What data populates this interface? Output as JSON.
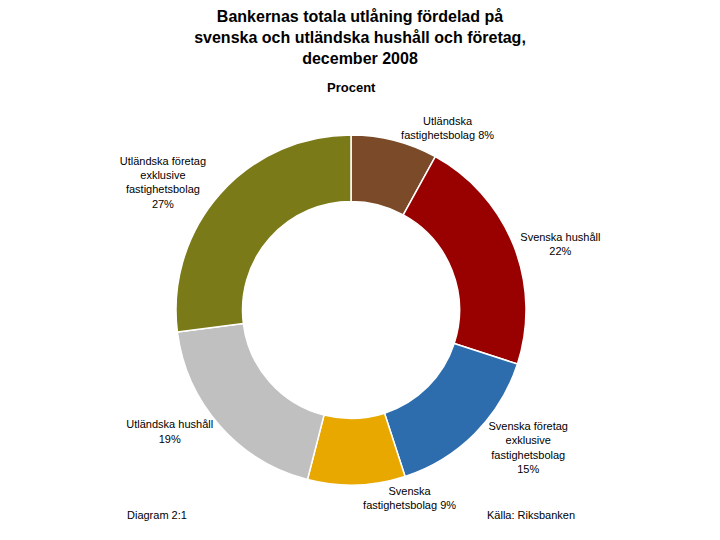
{
  "chart_data": {
    "type": "donut",
    "title": "Bankernas totala utlåning fördelad på\nsvenska och utländska hushåll och företag,\ndecember 2008",
    "subtitle": "Procent",
    "categories": [
      "Utländska\nfastighetsbolag 8%",
      "Svenska hushåll\n22%",
      "Svenska företag\nexklusive\nfastighetsbolag\n15%",
      "Svenska\nfastighetsbolag 9%",
      "Utländska hushåll\n19%",
      "Utländska företag\nexklusive\nfastighetsbolag\n27%"
    ],
    "values": [
      8,
      22,
      15,
      9,
      19,
      27
    ],
    "colors": [
      "#7B4A28",
      "#990000",
      "#2E6DAD",
      "#E8A800",
      "#C0C0C0",
      "#7B7A18"
    ],
    "data_labels": true,
    "annotations": [
      "Diagram 2:1",
      "Källa: Riksbanken"
    ]
  }
}
